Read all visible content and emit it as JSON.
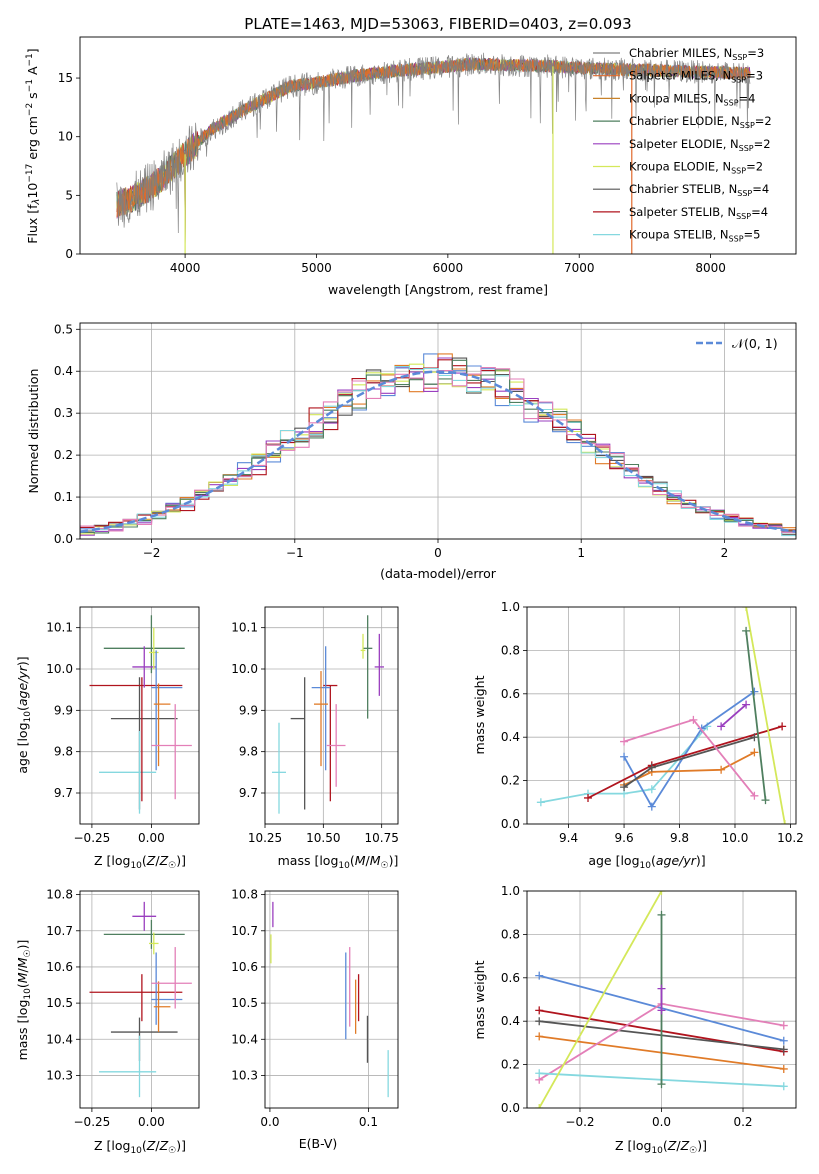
{
  "page": {
    "title": "PLATE=1463, MJD=53063, FIBERID=0403, z=0.093"
  },
  "colors": {
    "Chabrier MILES": "#7f7f7f",
    "Salpeter MILES": "#e06a2c",
    "Kroupa MILES": "#c8822a",
    "Chabrier ELODIE": "#4f7f5f",
    "Salpeter ELODIE": "#9a3fbf",
    "Kroupa ELODIE": "#d4e85a",
    "Chabrier STELIB": "#555555",
    "Salpeter STELIB": "#b0141e",
    "Kroupa STELIB": "#85d8df",
    "blue": "#5b8ad8",
    "orange": "#e07b28",
    "pink": "#e37fb8",
    "normal": "#5b8ad8"
  },
  "chart_data": [
    {
      "id": "spectrum",
      "type": "line",
      "title": "PLATE=1463, MJD=53063, FIBERID=0403, z=0.093",
      "xlabel": "wavelength [Angstrom, rest frame]",
      "ylabel": "Flux [f_λ10^-17 erg cm^-2 s^-1 A^-1]",
      "xlim": [
        3200,
        8650
      ],
      "ylim": [
        0,
        18.5
      ],
      "xticks": [
        4000,
        5000,
        6000,
        7000,
        8000
      ],
      "yticks": [
        0,
        5,
        10,
        15
      ],
      "grid": false,
      "legend_position": "top-right",
      "series": [
        {
          "name": "Chabrier MILES, N_SSP=3",
          "label_main": "Chabrier MILES, N",
          "sub": "SSP",
          "tail": "=3",
          "color_key": "Chabrier MILES"
        },
        {
          "name": "Salpeter MILES, N_SSP=3",
          "label_main": "Salpeter MILES, N",
          "sub": "SSP",
          "tail": "=3",
          "color_key": "Salpeter MILES"
        },
        {
          "name": "Kroupa MILES, N_SSP=4",
          "label_main": "Kroupa MILES, N",
          "sub": "SSP",
          "tail": "=4",
          "color_key": "Kroupa MILES"
        },
        {
          "name": "Chabrier ELODIE, N_SSP=2",
          "label_main": "Chabrier ELODIE, N",
          "sub": "SSP",
          "tail": "=2",
          "color_key": "Chabrier ELODIE"
        },
        {
          "name": "Salpeter ELODIE, N_SSP=2",
          "label_main": "Salpeter ELODIE, N",
          "sub": "SSP",
          "tail": "=2",
          "color_key": "Salpeter ELODIE"
        },
        {
          "name": "Kroupa ELODIE, N_SSP=2",
          "label_main": "Kroupa ELODIE, N",
          "sub": "SSP",
          "tail": "=2",
          "color_key": "Kroupa ELODIE"
        },
        {
          "name": "Chabrier STELIB, N_SSP=4",
          "label_main": "Chabrier STELIB, N",
          "sub": "SSP",
          "tail": "=4",
          "color_key": "Chabrier STELIB"
        },
        {
          "name": "Salpeter STELIB, N_SSP=4",
          "label_main": "Salpeter STELIB, N",
          "sub": "SSP",
          "tail": "=4",
          "color_key": "Salpeter STELIB"
        },
        {
          "name": "Kroupa STELIB, N_SSP=5",
          "label_main": "Kroupa STELIB, N",
          "sub": "SSP",
          "tail": "=5",
          "color_key": "Kroupa STELIB"
        }
      ],
      "continuum": {
        "x": [
          3480,
          3600,
          3800,
          4000,
          4200,
          4500,
          4800,
          5000,
          5300,
          5600,
          5900,
          6200,
          6500,
          6800,
          7100,
          7400,
          7700,
          8000,
          8300
        ],
        "y": [
          4.2,
          4.7,
          6.2,
          8.5,
          10.6,
          12.6,
          14.3,
          14.6,
          15.2,
          15.6,
          15.9,
          16.2,
          16.1,
          16.0,
          15.8,
          15.7,
          15.6,
          15.5,
          15.4
        ]
      },
      "spikes_to_zero": [
        4000,
        6800,
        7400
      ]
    },
    {
      "id": "residuals",
      "type": "line",
      "xlabel": "(data-model)/error",
      "ylabel": "Normed distribution",
      "xlim": [
        -2.5,
        2.5
      ],
      "ylim": [
        0,
        0.515
      ],
      "xticks": [
        -2,
        -1,
        0,
        1,
        2
      ],
      "yticks": [
        0.0,
        0.1,
        0.2,
        0.3,
        0.4,
        0.5
      ],
      "grid": true,
      "legend_position": "top-right",
      "legend_label": "𝒩(0, 1)",
      "bin_width": 0.1,
      "hist_color_keys": [
        "blue",
        "orange",
        "Salpeter ELODIE",
        "Chabrier STELIB",
        "Kroupa ELODIE",
        "Salpeter STELIB",
        "Kroupa STELIB",
        "Chabrier ELODIE",
        "pink"
      ]
    },
    {
      "id": "age-vs-Z",
      "type": "scatter",
      "xlabel": "Z [log10(Z/Z☉)]",
      "ylabel": "age [log10(age/yr)]",
      "xlim": [
        -0.3,
        0.2
      ],
      "ylim": [
        9.625,
        10.15
      ],
      "xticks": [
        -0.25,
        0.0
      ],
      "yticks": [
        9.7,
        9.8,
        9.9,
        10.0,
        10.1
      ],
      "grid": true,
      "points": [
        {
          "x": -0.05,
          "y": 9.88,
          "xerr": [
            0.12,
            0.16
          ],
          "yerr": [
            0.22,
            0.1
          ],
          "color_key": "Chabrier STELIB"
        },
        {
          "x": -0.05,
          "y": 9.75,
          "xerr": [
            0.17,
            0.07
          ],
          "yerr": [
            0.1,
            0.1
          ],
          "color_key": "Kroupa STELIB"
        },
        {
          "x": -0.04,
          "y": 9.96,
          "xerr": [
            0.22,
            0.17
          ],
          "yerr": [
            0.28,
            0.02
          ],
          "color_key": "Salpeter STELIB"
        },
        {
          "x": 0.0,
          "y": 10.05,
          "xerr": [
            0.2,
            0.14
          ],
          "yerr": [
            0.06,
            0.08
          ],
          "color_key": "Chabrier ELODIE"
        },
        {
          "x": -0.03,
          "y": 10.005,
          "xerr": [
            0.05,
            0.05
          ],
          "yerr": [
            0.05,
            0.05
          ],
          "color_key": "Salpeter ELODIE"
        },
        {
          "x": 0.01,
          "y": 10.04,
          "xerr": [
            0.02,
            0.02
          ],
          "yerr": [
            0.04,
            0.06
          ],
          "color_key": "Kroupa ELODIE"
        },
        {
          "x": 0.02,
          "y": 9.955,
          "xerr": [
            0.02,
            0.11
          ],
          "yerr": [
            0.2,
            0.09
          ],
          "color_key": "blue"
        },
        {
          "x": 0.03,
          "y": 9.915,
          "xerr": [
            0.02,
            0.05
          ],
          "yerr": [
            0.15,
            0.05
          ],
          "color_key": "orange"
        },
        {
          "x": 0.1,
          "y": 9.815,
          "xerr": [
            0.1,
            0.07
          ],
          "yerr": [
            0.13,
            0.1
          ],
          "color_key": "pink"
        }
      ]
    },
    {
      "id": "age-vs-mass",
      "type": "scatter",
      "xlabel": "mass [log10(M/M☉)]",
      "xlim": [
        10.25,
        10.82
      ],
      "ylim": [
        9.625,
        10.15
      ],
      "xticks": [
        10.25,
        10.5,
        10.75
      ],
      "yticks": [
        9.7,
        9.8,
        9.9,
        10.0,
        10.1
      ],
      "grid": true,
      "points": [
        {
          "x": 10.42,
          "y": 9.88,
          "xerr": [
            0.06,
            0.0
          ],
          "yerr": [
            0.22,
            0.1
          ],
          "color_key": "Chabrier STELIB"
        },
        {
          "x": 10.31,
          "y": 9.75,
          "xerr": [
            0.03,
            0.03
          ],
          "yerr": [
            0.1,
            0.12
          ],
          "color_key": "Kroupa STELIB"
        },
        {
          "x": 10.53,
          "y": 9.96,
          "xerr": [
            0.03,
            0.03
          ],
          "yerr": [
            0.28,
            0.0
          ],
          "color_key": "Salpeter STELIB"
        },
        {
          "x": 10.69,
          "y": 10.05,
          "xerr": [
            0.02,
            0.02
          ],
          "yerr": [
            0.17,
            0.08
          ],
          "color_key": "Chabrier ELODIE"
        },
        {
          "x": 10.74,
          "y": 10.005,
          "xerr": [
            0.02,
            0.02
          ],
          "yerr": [
            0.07,
            0.08
          ],
          "color_key": "Salpeter ELODIE"
        },
        {
          "x": 10.67,
          "y": 10.045,
          "xerr": [
            0.01,
            0.01
          ],
          "yerr": [
            0.02,
            0.04
          ],
          "color_key": "Kroupa ELODIE"
        },
        {
          "x": 10.51,
          "y": 9.955,
          "xerr": [
            0.06,
            0.02
          ],
          "yerr": [
            0.2,
            0.1
          ],
          "color_key": "blue"
        },
        {
          "x": 10.49,
          "y": 9.915,
          "xerr": [
            0.03,
            0.03
          ],
          "yerr": [
            0.15,
            0.08
          ],
          "color_key": "orange"
        },
        {
          "x": 10.555,
          "y": 9.815,
          "xerr": [
            0.04,
            0.04
          ],
          "yerr": [
            0.1,
            0.1
          ],
          "color_key": "pink"
        }
      ]
    },
    {
      "id": "weight-vs-age",
      "type": "line",
      "xlabel": "age [log10(age/yr)]",
      "ylabel": "mass weight",
      "xlim": [
        9.25,
        10.22
      ],
      "ylim": [
        0,
        1
      ],
      "xticks": [
        9.4,
        9.6,
        9.8,
        10.0,
        10.2
      ],
      "yticks": [
        0.0,
        0.2,
        0.4,
        0.6,
        0.8,
        1.0
      ],
      "grid": true,
      "series": [
        {
          "color_key": "Kroupa STELIB",
          "x": [
            9.3,
            9.47,
            9.6,
            9.7,
            9.9
          ],
          "y": [
            0.1,
            0.14,
            0.14,
            0.16,
            0.45
          ]
        },
        {
          "color_key": "blue",
          "x": [
            9.6,
            9.7,
            9.88,
            10.07
          ],
          "y": [
            0.31,
            0.08,
            0.44,
            0.61
          ]
        },
        {
          "color_key": "orange",
          "x": [
            9.6,
            9.7,
            9.95,
            10.07
          ],
          "y": [
            0.18,
            0.24,
            0.25,
            0.33
          ]
        },
        {
          "color_key": "Salpeter STELIB",
          "x": [
            9.47,
            9.7,
            10.17
          ],
          "y": [
            0.12,
            0.27,
            0.45
          ]
        },
        {
          "color_key": "Chabrier STELIB",
          "x": [
            9.6,
            9.7,
            10.07
          ],
          "y": [
            0.17,
            0.26,
            0.4
          ]
        },
        {
          "color_key": "pink",
          "x": [
            9.6,
            9.85,
            10.07
          ],
          "y": [
            0.38,
            0.48,
            0.13
          ]
        },
        {
          "color_key": "Salpeter ELODIE",
          "x": [
            9.95,
            10.04
          ],
          "y": [
            0.45,
            0.55
          ]
        },
        {
          "color_key": "Kroupa ELODIE",
          "x": [
            10.04,
            10.18
          ],
          "y": [
            1.0,
            0.0
          ]
        },
        {
          "color_key": "Chabrier ELODIE",
          "x": [
            10.04,
            10.11
          ],
          "y": [
            0.89,
            0.11
          ]
        }
      ]
    },
    {
      "id": "mass-vs-Z",
      "type": "scatter",
      "xlabel": "Z [log10(Z/Z☉)]",
      "ylabel": "mass [log10(M/M☉)]",
      "xlim": [
        -0.3,
        0.2
      ],
      "ylim": [
        10.21,
        10.81
      ],
      "xticks": [
        -0.25,
        0.0
      ],
      "yticks": [
        10.3,
        10.4,
        10.5,
        10.6,
        10.7,
        10.8
      ],
      "grid": true,
      "points": [
        {
          "x": -0.05,
          "y": 10.42,
          "xerr": [
            0.12,
            0.16
          ],
          "yerr": [
            0.08,
            0.04
          ],
          "color_key": "Chabrier STELIB"
        },
        {
          "x": -0.05,
          "y": 10.31,
          "xerr": [
            0.17,
            0.07
          ],
          "yerr": [
            0.07,
            0.1
          ],
          "color_key": "Kroupa STELIB"
        },
        {
          "x": -0.04,
          "y": 10.53,
          "xerr": [
            0.22,
            0.17
          ],
          "yerr": [
            0.08,
            0.05
          ],
          "color_key": "Salpeter STELIB"
        },
        {
          "x": 0.0,
          "y": 10.69,
          "xerr": [
            0.2,
            0.14
          ],
          "yerr": [
            0.04,
            0.04
          ],
          "color_key": "Chabrier ELODIE"
        },
        {
          "x": -0.03,
          "y": 10.74,
          "xerr": [
            0.05,
            0.05
          ],
          "yerr": [
            0.04,
            0.04
          ],
          "color_key": "Salpeter ELODIE"
        },
        {
          "x": 0.01,
          "y": 10.665,
          "xerr": [
            0.02,
            0.02
          ],
          "yerr": [
            0.03,
            0.03
          ],
          "color_key": "Kroupa ELODIE"
        },
        {
          "x": 0.02,
          "y": 10.51,
          "xerr": [
            0.02,
            0.11
          ],
          "yerr": [
            0.07,
            0.13
          ],
          "color_key": "blue"
        },
        {
          "x": 0.03,
          "y": 10.49,
          "xerr": [
            0.02,
            0.05
          ],
          "yerr": [
            0.07,
            0.07
          ],
          "color_key": "orange"
        },
        {
          "x": 0.1,
          "y": 10.555,
          "xerr": [
            0.1,
            0.07
          ],
          "yerr": [
            0.07,
            0.1
          ],
          "color_key": "pink"
        }
      ]
    },
    {
      "id": "mass-vs-ebv",
      "type": "scatter",
      "xlabel": "E(B-V)",
      "xlim": [
        -0.005,
        0.13
      ],
      "ylim": [
        10.21,
        10.81
      ],
      "xticks": [
        0.0,
        0.1
      ],
      "yticks": [
        10.3,
        10.4,
        10.5,
        10.6,
        10.7,
        10.8
      ],
      "grid": true,
      "points": [
        {
          "x": 0.099,
          "y": 10.4,
          "xerr": [
            0,
            0
          ],
          "yerr": [
            0.065,
            0.065
          ],
          "color_key": "Chabrier STELIB"
        },
        {
          "x": 0.12,
          "y": 10.305,
          "xerr": [
            0,
            0
          ],
          "yerr": [
            0.065,
            0.065
          ],
          "color_key": "Kroupa STELIB"
        },
        {
          "x": 0.09,
          "y": 10.515,
          "xerr": [
            0,
            0
          ],
          "yerr": [
            0.065,
            0.065
          ],
          "color_key": "Salpeter STELIB"
        },
        {
          "x": 0.003,
          "y": 10.745,
          "xerr": [
            0,
            0
          ],
          "yerr": [
            0.035,
            0.035
          ],
          "color_key": "Salpeter ELODIE"
        },
        {
          "x": 0.001,
          "y": 10.65,
          "xerr": [
            0,
            0
          ],
          "yerr": [
            0.04,
            0.04
          ],
          "color_key": "Kroupa ELODIE"
        },
        {
          "x": 0.077,
          "y": 10.52,
          "xerr": [
            0,
            0
          ],
          "yerr": [
            0.12,
            0.12
          ],
          "color_key": "blue"
        },
        {
          "x": 0.087,
          "y": 10.49,
          "xerr": [
            0,
            0
          ],
          "yerr": [
            0.075,
            0.075
          ],
          "color_key": "orange"
        },
        {
          "x": 0.081,
          "y": 10.535,
          "xerr": [
            0,
            0
          ],
          "yerr": [
            0.1,
            0.12
          ],
          "color_key": "pink"
        }
      ]
    },
    {
      "id": "weight-vs-Z",
      "type": "line",
      "xlabel": "Z [log10(Z/Z☉)]",
      "ylabel": "mass weight",
      "xlim": [
        -0.33,
        0.33
      ],
      "ylim": [
        0,
        1
      ],
      "xticks": [
        -0.2,
        0.0,
        0.2
      ],
      "yticks": [
        0.0,
        0.2,
        0.4,
        0.6,
        0.8,
        1.0
      ],
      "grid": true,
      "series": [
        {
          "color_key": "blue",
          "x": [
            -0.3,
            0.3
          ],
          "y": [
            0.61,
            0.31
          ]
        },
        {
          "color_key": "Salpeter STELIB",
          "x": [
            -0.3,
            0.3
          ],
          "y": [
            0.45,
            0.26
          ]
        },
        {
          "color_key": "Chabrier STELIB",
          "x": [
            -0.3,
            0.3
          ],
          "y": [
            0.4,
            0.27
          ]
        },
        {
          "color_key": "orange",
          "x": [
            -0.3,
            0.3
          ],
          "y": [
            0.33,
            0.18
          ]
        },
        {
          "color_key": "pink",
          "x": [
            -0.3,
            0.0,
            0.3
          ],
          "y": [
            0.13,
            0.48,
            0.38
          ]
        },
        {
          "color_key": "Kroupa STELIB",
          "x": [
            -0.3,
            0.3
          ],
          "y": [
            0.16,
            0.1
          ]
        },
        {
          "color_key": "Kroupa ELODIE",
          "x": [
            -0.3,
            0.0
          ],
          "y": [
            0.0,
            1.0
          ]
        },
        {
          "color_key": "Chabrier ELODIE",
          "x": [
            0.0,
            0.0
          ],
          "y": [
            0.11,
            0.89
          ]
        },
        {
          "color_key": "Salpeter ELODIE",
          "x": [
            0.0,
            0.0
          ],
          "y": [
            0.45,
            0.55
          ]
        }
      ]
    }
  ]
}
